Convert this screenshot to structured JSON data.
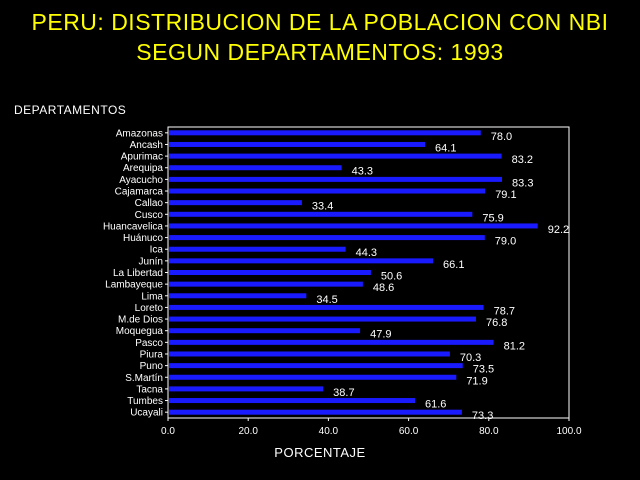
{
  "chart_data": {
    "type": "bar",
    "orientation": "horizontal",
    "title_line1": "PERU: DISTRIBUCION DE LA POBLACION CON NBI",
    "title_line2": "SEGUN DEPARTAMENTOS: 1993",
    "ylabel": "DEPARTAMENTOS",
    "xlabel": "PORCENTAJE",
    "xlim": [
      0,
      100
    ],
    "xticks": [
      "0.0",
      "20.0",
      "40.0",
      "60.0",
      "80.0",
      "100.0"
    ],
    "categories": [
      "Amazonas",
      "Ancash",
      "Apurimac",
      "Arequipa",
      "Ayacucho",
      "Cajamarca",
      "Callao",
      "Cusco",
      "Huancavelica",
      "Huánuco",
      "Ica",
      "Junín",
      "La Libertad",
      "Lambayeque",
      "Lima",
      "Loreto",
      "M.de Dios",
      "Moquegua",
      "Pasco",
      "Piura",
      "Puno",
      "S.Martín",
      "Tacna",
      "Tumbes",
      "Ucayali"
    ],
    "values": [
      78.0,
      64.1,
      83.2,
      43.3,
      83.3,
      79.1,
      33.4,
      75.9,
      92.2,
      79.0,
      44.3,
      66.1,
      50.6,
      48.6,
      34.5,
      78.7,
      76.8,
      47.9,
      81.2,
      70.3,
      73.5,
      71.9,
      38.7,
      61.6,
      73.3
    ],
    "value_labels": [
      "78.0",
      "64.1",
      "83.2",
      "43.3",
      "83.3",
      "79.1",
      "33.4",
      "75.9",
      "92.2",
      "79.0",
      "44.3",
      "66.1",
      "50.6",
      "48.6",
      "34.5",
      "78.7",
      "76.8",
      "47.9",
      "81.2",
      "70.3",
      "73.5",
      "71.9",
      "38.7",
      "61.6",
      "73.3"
    ],
    "bar_color": "#1a1aff",
    "text_color": "#ffffff",
    "title_color": "#ffff00",
    "background": "#000000",
    "grid": false
  }
}
